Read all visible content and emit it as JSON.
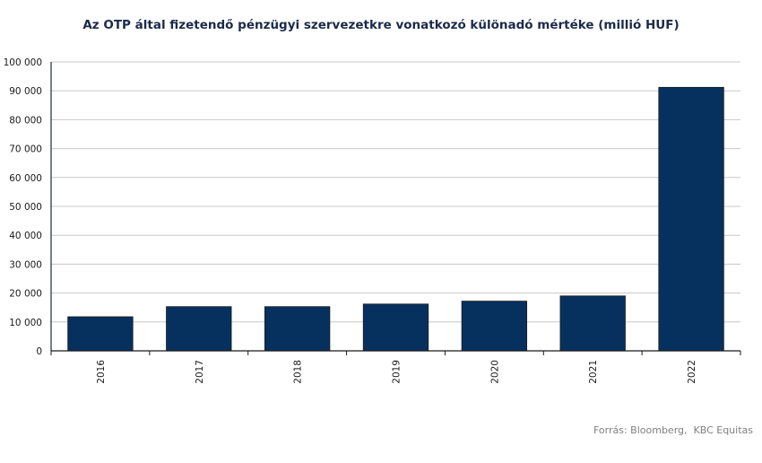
{
  "chart_data": {
    "type": "bar",
    "title": "Az OTP által fizetendő pénzügyi szervezetkre vonatkozó különadó mértéke (millió HUF)",
    "categories": [
      "2016",
      "2017",
      "2018",
      "2019",
      "2020",
      "2021",
      "2022"
    ],
    "values": [
      11800,
      15300,
      15300,
      16200,
      17200,
      19000,
      91200
    ],
    "ylim": [
      0,
      100000
    ],
    "yticks": [
      0,
      10000,
      20000,
      30000,
      40000,
      50000,
      60000,
      70000,
      80000,
      90000,
      100000
    ],
    "ytick_labels": [
      "0",
      "10 000",
      "20 000",
      "30 000",
      "40 000",
      "50 000",
      "60 000",
      "70 000",
      "80 000",
      "90 000",
      "100 000"
    ],
    "xlabel": "",
    "ylabel": "",
    "grid": true,
    "bar_color": "#06315f",
    "grid_color": "#c8c8c8"
  },
  "source": "Forrás: Bloomberg,  KBC Equitas"
}
